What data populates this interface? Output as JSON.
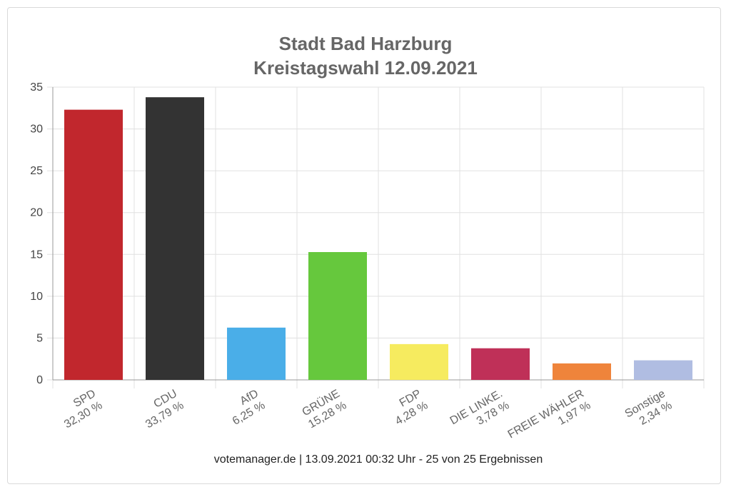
{
  "chart_data": {
    "type": "bar",
    "title": [
      "Stadt Bad Harzburg",
      "Kreistagswahl 12.09.2021"
    ],
    "categories": [
      "SPD",
      "CDU",
      "AfD",
      "GRÜNE",
      "FDP",
      "DIE LINKE.",
      "FREIE WÄHLER",
      "Sonstige"
    ],
    "value_labels": [
      "32,30 %",
      "33,79 %",
      "6,25 %",
      "15,28 %",
      "4,28 %",
      "3,78 %",
      "1,97 %",
      "2,34 %"
    ],
    "values": [
      32.3,
      33.79,
      6.25,
      15.28,
      4.28,
      3.78,
      1.97,
      2.34
    ],
    "colors": [
      "#c1272d",
      "#333333",
      "#4aaee8",
      "#66c83d",
      "#f6eb5f",
      "#bf3058",
      "#ef843b",
      "#b0bde2"
    ],
    "ylim": [
      0,
      35
    ],
    "yticks": [
      0,
      5,
      10,
      15,
      20,
      25,
      30,
      35
    ],
    "grid": true,
    "source": "votemanager.de | 13.09.2021 00:32 Uhr - 25 von 25 Ergebnissen"
  }
}
